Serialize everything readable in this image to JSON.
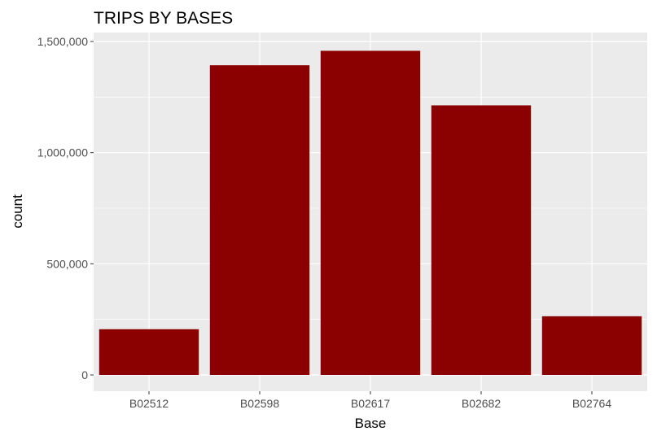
{
  "chart_data": {
    "type": "bar",
    "title": "TRIPS BY BASES",
    "xlabel": "Base",
    "ylabel": "count",
    "categories": [
      "B02512",
      "B02598",
      "B02617",
      "B02682",
      "B02764"
    ],
    "values": [
      205673,
      1393113,
      1458023,
      1212789,
      263899
    ],
    "ylim": [
      0,
      1600000
    ],
    "yticks": [
      0,
      500000,
      1000000,
      1500000
    ],
    "ytick_labels": [
      "0",
      "500,000",
      "1,000,000",
      "1,500,000"
    ],
    "bar_color": "#8b0000",
    "panel_background": "#ebebeb",
    "grid_color": "#ffffff",
    "grid": true,
    "legend": "none"
  }
}
